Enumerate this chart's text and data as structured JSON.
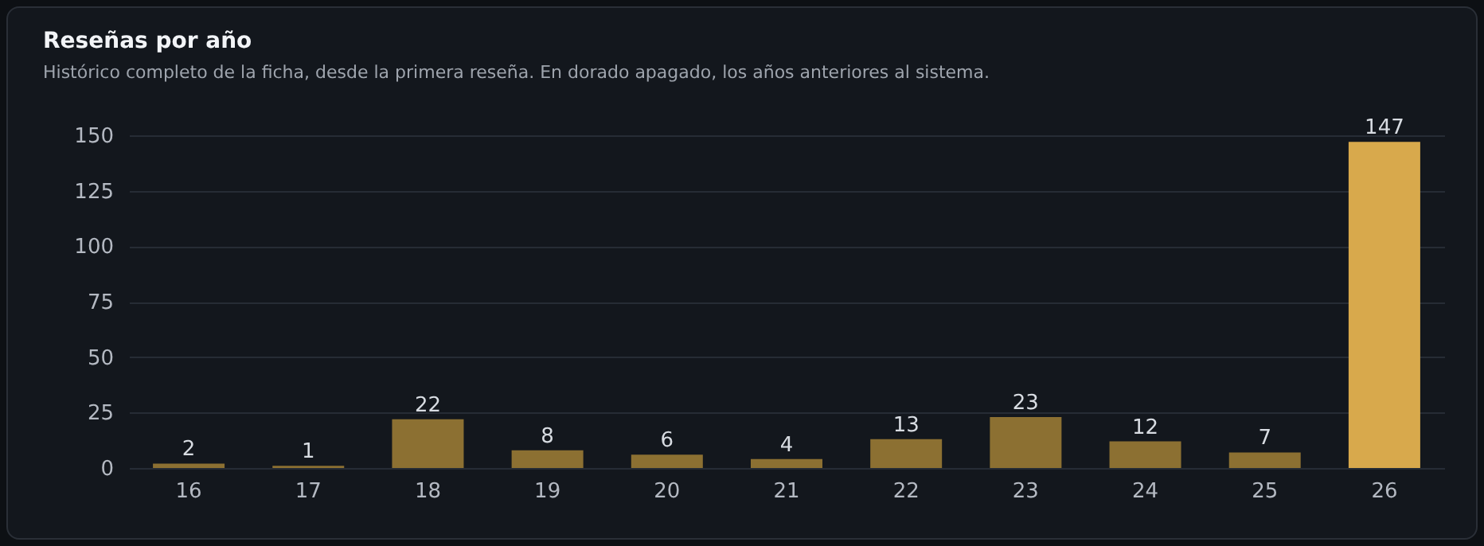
{
  "chart_data": {
    "type": "bar",
    "title": "Reseñas por año",
    "subtitle": "Histórico completo de la ficha, desde la primera reseña. En dorado apagado, los años anteriores al sistema.",
    "categories": [
      "16",
      "17",
      "18",
      "19",
      "20",
      "21",
      "22",
      "23",
      "24",
      "25",
      "26"
    ],
    "values": [
      2,
      1,
      22,
      8,
      6,
      4,
      13,
      23,
      12,
      7,
      147
    ],
    "colors": [
      "#8c7032",
      "#8c7032",
      "#8c7032",
      "#8c7032",
      "#8c7032",
      "#8c7032",
      "#8c7032",
      "#8c7032",
      "#8c7032",
      "#8c7032",
      "#d8a94c"
    ],
    "ylim": [
      0,
      150
    ],
    "yticks": [
      0,
      25,
      50,
      75,
      100,
      125,
      150
    ],
    "grid": "y",
    "data_labels": true
  }
}
